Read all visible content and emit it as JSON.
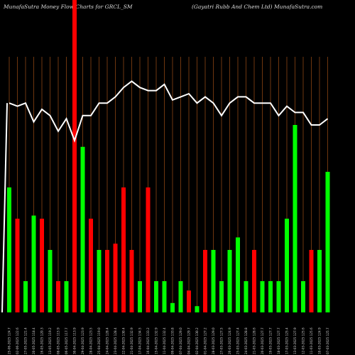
{
  "header": {
    "left": "MunafaSutra  Money Flow  Charts for GRCL_SM",
    "right": "(Gayatri   Rubb And Chem Ltd) MunafaSutra.com"
  },
  "colors": {
    "background": "#000000",
    "grid": "#8B4513",
    "up": "#00ff00",
    "down": "#ff0000",
    "line": "#ffffff",
    "text": "#cfcfcf"
  },
  "chart_data": {
    "type": "bar",
    "grid": true,
    "categories": [
      "25-06-2025 124.7",
      "02-06-2025 122.6",
      "27-05-2025 121.4",
      "20-05-2025 118.4",
      "16-05-2025 120.3",
      "13-05-2025 119.2",
      "08-05-2025 115.9",
      "06-05-2025 117.7",
      "30-04-2025 113.9",
      "29-04-2025 123.9",
      "28-04-2025 123.5",
      "25-04-2025 119.0",
      "24-04-2025 128.4",
      "23-04-2025 128.4",
      "22-04-2025 130.4",
      "21-04-2025 132.9",
      "17-04-2025 134.5",
      "16-04-2025 133.2",
      "15-04-2025 132.9",
      "11-04-2025 132.4",
      "09-04-2025 133.8",
      "07-04-2025 129.0",
      "04-04-2025 129.7",
      "02-04-2025 130.2",
      "01-04-2025 127.2",
      "28-03-2025 129.0",
      "27-03-2025 127.5",
      "26-03-2025 124.9",
      "25-03-2025 127.4",
      "24-03-2025 128.8",
      "21-03-2025 128.6",
      "20-03-2025 127.7",
      "19-03-2025 127.7",
      "18-03-2025 127.7",
      "17-03-2025 125.4",
      "13-03-2025 127.9",
      "12-03-2025 125.6",
      "11-03-2025 125.6",
      "10-03-2025 124.9",
      "07-03-2025 125.7"
    ],
    "series": [
      {
        "values": [
          40,
          30,
          10,
          31,
          30,
          20,
          10,
          10,
          100,
          53,
          30,
          20,
          20,
          22,
          40,
          20,
          10,
          40,
          10,
          10,
          3,
          10,
          7,
          2,
          20,
          20,
          10,
          20,
          24,
          10,
          20,
          10,
          10,
          10,
          30,
          60,
          10,
          20,
          20,
          45
        ],
        "directions": [
          "up",
          "down",
          "up",
          "up",
          "down",
          "up",
          "down",
          "up",
          "down",
          "up",
          "down",
          "up",
          "down",
          "down",
          "down",
          "down",
          "up",
          "down",
          "up",
          "up",
          "up",
          "up",
          "down",
          "up",
          "down",
          "up",
          "up",
          "up",
          "up",
          "up",
          "down",
          "up",
          "up",
          "up",
          "up",
          "up",
          "up",
          "down",
          "up",
          "up"
        ]
      },
      {
        "values": [
          67,
          66,
          67,
          61,
          65,
          63,
          58,
          62,
          55,
          63,
          63,
          67,
          67,
          69,
          72,
          74,
          72,
          71,
          71,
          73,
          68,
          69,
          70,
          67,
          69,
          67,
          63,
          67,
          69,
          69,
          67,
          67,
          67,
          63,
          66,
          64,
          64,
          60,
          60,
          62
        ]
      }
    ],
    "ylim": [
      0,
      100
    ]
  }
}
